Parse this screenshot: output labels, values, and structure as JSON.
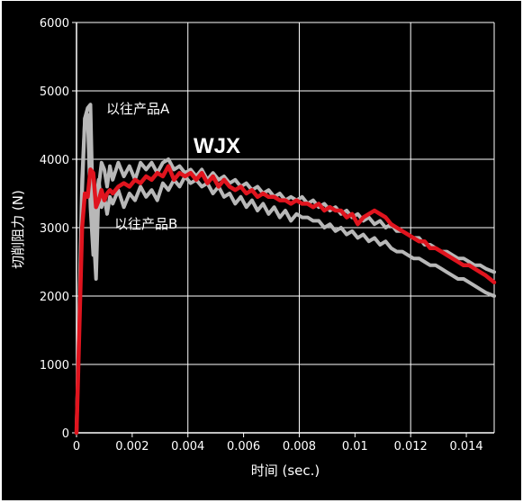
{
  "chart_data": {
    "type": "line",
    "xlabel": "时间 (sec.)",
    "ylabel": "切削阻力 (N)",
    "xlim": [
      0,
      0.015
    ],
    "ylim": [
      0,
      6000
    ],
    "x_ticks": [
      "0",
      "0.002",
      "0.004",
      "0.006",
      "0.008",
      "0.01",
      "0.012",
      "0.014"
    ],
    "x_tick_values": [
      0,
      0.002,
      0.004,
      0.006,
      0.008,
      0.01,
      0.012,
      0.014
    ],
    "y_ticks": [
      "0",
      "1000",
      "2000",
      "3000",
      "4000",
      "5000",
      "6000"
    ],
    "y_tick_values": [
      0,
      1000,
      2000,
      3000,
      4000,
      5000,
      6000
    ],
    "grid": true,
    "colors": {
      "background": "#000000",
      "grid": "#ffffff",
      "wjx": "#e0141e",
      "conventional": "#b8b8b8"
    },
    "annotations": {
      "product_a": "以往产品A",
      "product_b": "以往产品B",
      "wjx": "WJX"
    },
    "series": [
      {
        "name": "以往产品A",
        "color": "#b8b8b8",
        "x": [
          0,
          0.0001,
          0.0002,
          0.0003,
          0.0004,
          0.0005,
          0.0006,
          0.0007,
          0.0008,
          0.0009,
          0.001,
          0.0011,
          0.0012,
          0.0013,
          0.0015,
          0.0017,
          0.0019,
          0.0021,
          0.0023,
          0.0025,
          0.0027,
          0.0029,
          0.0031,
          0.0033,
          0.0035,
          0.0037,
          0.0039,
          0.0041,
          0.0043,
          0.0045,
          0.0047,
          0.0049,
          0.0051,
          0.0053,
          0.0055,
          0.0057,
          0.0059,
          0.0061,
          0.0063,
          0.0065,
          0.0067,
          0.0069,
          0.0071,
          0.0073,
          0.0075,
          0.0077,
          0.0079,
          0.0081,
          0.0083,
          0.0085,
          0.0087,
          0.0089,
          0.0091,
          0.0093,
          0.0095,
          0.0097,
          0.0099,
          0.0101,
          0.0103,
          0.0105,
          0.0107,
          0.0109,
          0.0111,
          0.0113,
          0.0115,
          0.0117,
          0.0119,
          0.0121,
          0.0123,
          0.0125,
          0.0127,
          0.0129,
          0.0131,
          0.0133,
          0.0135,
          0.0137,
          0.0139,
          0.0141,
          0.0143,
          0.0145,
          0.0147,
          0.015
        ],
        "values": [
          0,
          1800,
          3700,
          4600,
          4750,
          4800,
          3000,
          2250,
          3600,
          3950,
          3850,
          3600,
          3900,
          3700,
          3950,
          3750,
          3900,
          3700,
          3950,
          3850,
          3950,
          3800,
          3950,
          4000,
          3850,
          3900,
          3800,
          3850,
          3750,
          3850,
          3700,
          3800,
          3700,
          3750,
          3650,
          3700,
          3600,
          3650,
          3550,
          3600,
          3500,
          3550,
          3450,
          3500,
          3400,
          3450,
          3400,
          3450,
          3350,
          3400,
          3300,
          3350,
          3250,
          3300,
          3200,
          3250,
          3150,
          3200,
          3100,
          3150,
          3050,
          3100,
          3000,
          3050,
          2950,
          2950,
          2900,
          2850,
          2850,
          2750,
          2750,
          2700,
          2650,
          2650,
          2600,
          2550,
          2550,
          2500,
          2450,
          2450,
          2400,
          2350
        ]
      },
      {
        "name": "以往产品B",
        "color": "#b8b8b8",
        "x": [
          0,
          0.0001,
          0.0002,
          0.0003,
          0.0004,
          0.0005,
          0.0006,
          0.0007,
          0.0008,
          0.0009,
          0.001,
          0.0011,
          0.0012,
          0.0013,
          0.0015,
          0.0017,
          0.0019,
          0.0021,
          0.0023,
          0.0025,
          0.0027,
          0.0029,
          0.0031,
          0.0033,
          0.0035,
          0.0037,
          0.0039,
          0.0041,
          0.0043,
          0.0045,
          0.0047,
          0.0049,
          0.0051,
          0.0053,
          0.0055,
          0.0057,
          0.0059,
          0.0061,
          0.0063,
          0.0065,
          0.0067,
          0.0069,
          0.0071,
          0.0073,
          0.0075,
          0.0077,
          0.0079,
          0.0081,
          0.0083,
          0.0085,
          0.0087,
          0.0089,
          0.0091,
          0.0093,
          0.0095,
          0.0097,
          0.0099,
          0.0101,
          0.0103,
          0.0105,
          0.0107,
          0.0109,
          0.0111,
          0.0113,
          0.0115,
          0.0117,
          0.0119,
          0.0121,
          0.0123,
          0.0125,
          0.0127,
          0.0129,
          0.0131,
          0.0133,
          0.0135,
          0.0137,
          0.0139,
          0.0141,
          0.0143,
          0.0145,
          0.0147,
          0.015
        ],
        "values": [
          0,
          1700,
          3500,
          4600,
          4650,
          3300,
          2600,
          3400,
          3700,
          3300,
          3450,
          3200,
          3450,
          3350,
          3550,
          3300,
          3500,
          3400,
          3600,
          3450,
          3550,
          3400,
          3650,
          3550,
          3700,
          3600,
          3750,
          3650,
          3700,
          3600,
          3650,
          3500,
          3600,
          3450,
          3500,
          3350,
          3450,
          3300,
          3400,
          3250,
          3350,
          3200,
          3300,
          3150,
          3250,
          3100,
          3200,
          3150,
          3150,
          3100,
          3100,
          3000,
          3050,
          2950,
          3000,
          2900,
          2950,
          2850,
          2900,
          2800,
          2850,
          2750,
          2800,
          2700,
          2650,
          2650,
          2600,
          2550,
          2550,
          2500,
          2450,
          2450,
          2400,
          2350,
          2300,
          2250,
          2250,
          2200,
          2150,
          2100,
          2050,
          2000
        ]
      },
      {
        "name": "WJX",
        "color": "#e0141e",
        "x": [
          0,
          0.0001,
          0.0002,
          0.0003,
          0.0004,
          0.0005,
          0.0006,
          0.0007,
          0.0008,
          0.0009,
          0.001,
          0.0011,
          0.0012,
          0.0013,
          0.0015,
          0.0017,
          0.0019,
          0.0021,
          0.0023,
          0.0025,
          0.0027,
          0.0029,
          0.0031,
          0.0033,
          0.0035,
          0.0037,
          0.0039,
          0.0041,
          0.0043,
          0.0045,
          0.0047,
          0.0049,
          0.0051,
          0.0053,
          0.0055,
          0.0057,
          0.0059,
          0.0061,
          0.0063,
          0.0065,
          0.0067,
          0.0069,
          0.0071,
          0.0073,
          0.0075,
          0.0077,
          0.0079,
          0.0081,
          0.0083,
          0.0085,
          0.0087,
          0.0089,
          0.0091,
          0.0093,
          0.0095,
          0.0097,
          0.0099,
          0.0101,
          0.0103,
          0.0105,
          0.0107,
          0.0109,
          0.0111,
          0.0113,
          0.0115,
          0.0117,
          0.0119,
          0.0121,
          0.0123,
          0.0125,
          0.0127,
          0.0129,
          0.0131,
          0.0133,
          0.0135,
          0.0137,
          0.0139,
          0.0141,
          0.0143,
          0.0145,
          0.0147,
          0.015
        ],
        "values": [
          0,
          1500,
          3000,
          3500,
          3450,
          3850,
          3800,
          3300,
          3400,
          3550,
          3400,
          3500,
          3550,
          3500,
          3600,
          3650,
          3600,
          3700,
          3650,
          3750,
          3700,
          3800,
          3750,
          3900,
          3700,
          3800,
          3750,
          3800,
          3700,
          3800,
          3650,
          3750,
          3600,
          3700,
          3600,
          3550,
          3600,
          3500,
          3550,
          3450,
          3500,
          3450,
          3450,
          3400,
          3400,
          3350,
          3400,
          3350,
          3350,
          3300,
          3350,
          3250,
          3300,
          3250,
          3250,
          3150,
          3200,
          3050,
          3150,
          3200,
          3250,
          3200,
          3150,
          3050,
          3000,
          2950,
          2900,
          2850,
          2800,
          2800,
          2700,
          2700,
          2650,
          2600,
          2550,
          2500,
          2450,
          2450,
          2400,
          2350,
          2300,
          2200
        ]
      }
    ]
  }
}
